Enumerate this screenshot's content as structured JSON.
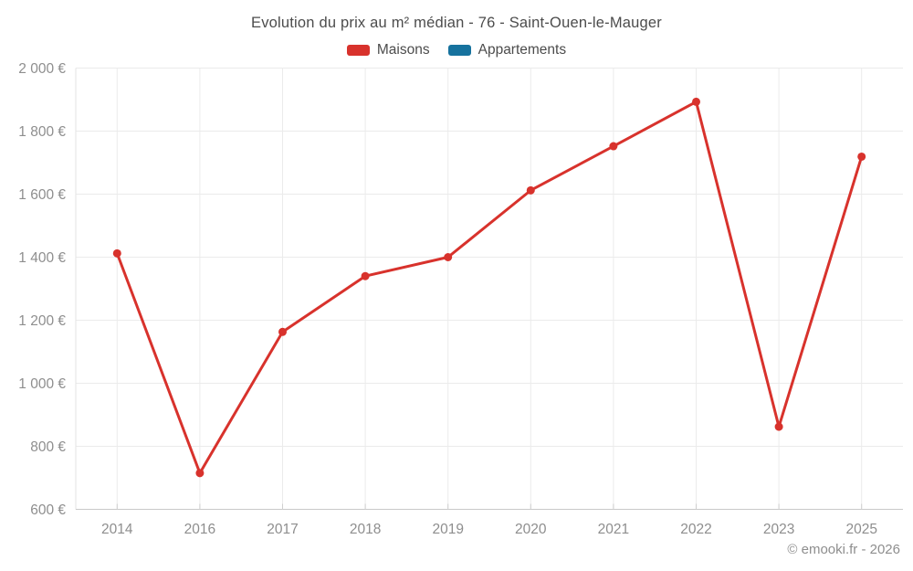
{
  "title": "Evolution du prix au m² médian - 76 - Saint-Ouen-le-Mauger",
  "legend": {
    "items": [
      {
        "label": "Maisons",
        "color": "#d8322c"
      },
      {
        "label": "Appartements",
        "color": "#16729e"
      }
    ]
  },
  "footer": {
    "copyright": "© emooki.fr - 2026"
  },
  "colors": {
    "grid": "#ebebeb",
    "axis_line": "#c9c9c9",
    "y_axis_line": "#e3e3e3",
    "tick": "#cfcfcf",
    "axis_text": "#8e8e8e",
    "title_text": "#4c4c4c",
    "background": "#ffffff"
  },
  "chart_data": {
    "type": "line",
    "title": "Evolution du prix au m² médian - 76 - Saint-Ouen-le-Mauger",
    "categories": [
      "2014",
      "2016",
      "2017",
      "2018",
      "2019",
      "2020",
      "2021",
      "2022",
      "2023",
      "2025"
    ],
    "series": [
      {
        "name": "Maisons",
        "color": "#d8322c",
        "values": [
          1412,
          715,
          1163,
          1340,
          1400,
          1612,
          1752,
          1893,
          862,
          1719
        ]
      },
      {
        "name": "Appartements",
        "color": "#16729e",
        "values": []
      }
    ],
    "xlabel": "",
    "ylabel": "",
    "ylim": [
      600,
      2000
    ],
    "ytick_step": 200,
    "ytick_labels": [
      "600 €",
      "800 €",
      "1 000 €",
      "1 200 €",
      "1 400 €",
      "1 600 €",
      "1 800 €",
      "2 000 €"
    ],
    "grid": true,
    "legend_position": "top",
    "unit": "€/m²"
  }
}
